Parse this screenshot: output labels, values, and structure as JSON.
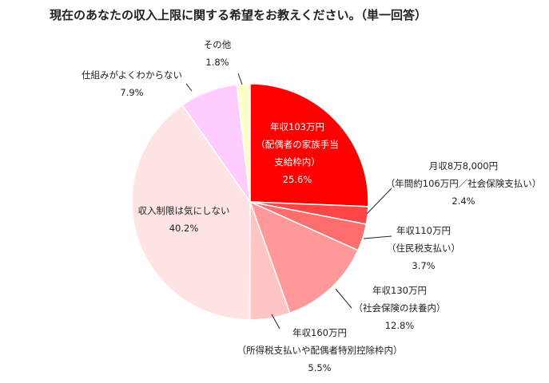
{
  "chart_data": {
    "type": "pie",
    "title": "現在のあなたの収入上限に関する希望をお教えください。（単一回答）",
    "slices": [
      {
        "lines": [
          "年収103万円",
          "（配偶者の家族手当",
          "支給枠内）"
        ],
        "value": 25.6,
        "pct_label": "25.6%",
        "color": "#ff0000"
      },
      {
        "lines": [
          "月収8万8,000円",
          "（年間約106万円／社会保険支払い）"
        ],
        "value": 2.4,
        "pct_label": "2.4%",
        "color": "#ff4545"
      },
      {
        "lines": [
          "年収110万円",
          "（住民税支払い）"
        ],
        "value": 3.7,
        "pct_label": "3.7%",
        "color": "#ff6e6e"
      },
      {
        "lines": [
          "年収130万円",
          "（社会保険の扶養内）"
        ],
        "value": 12.8,
        "pct_label": "12.8%",
        "color": "#ff9999"
      },
      {
        "lines": [
          "年収160万円",
          "（所得税支払いや配偶者特別控除枠内）"
        ],
        "value": 5.5,
        "pct_label": "5.5%",
        "color": "#ffc4c4"
      },
      {
        "lines": [
          "収入制限は気にしない"
        ],
        "value": 40.2,
        "pct_label": "40.2%",
        "color": "#ffe4e4"
      },
      {
        "lines": [
          "仕組みがよくわからない"
        ],
        "value": 7.9,
        "pct_label": "7.9%",
        "color": "#ffccff"
      },
      {
        "lines": [
          "その他"
        ],
        "value": 1.8,
        "pct_label": "1.8%",
        "color": "#ffffcc"
      }
    ]
  }
}
